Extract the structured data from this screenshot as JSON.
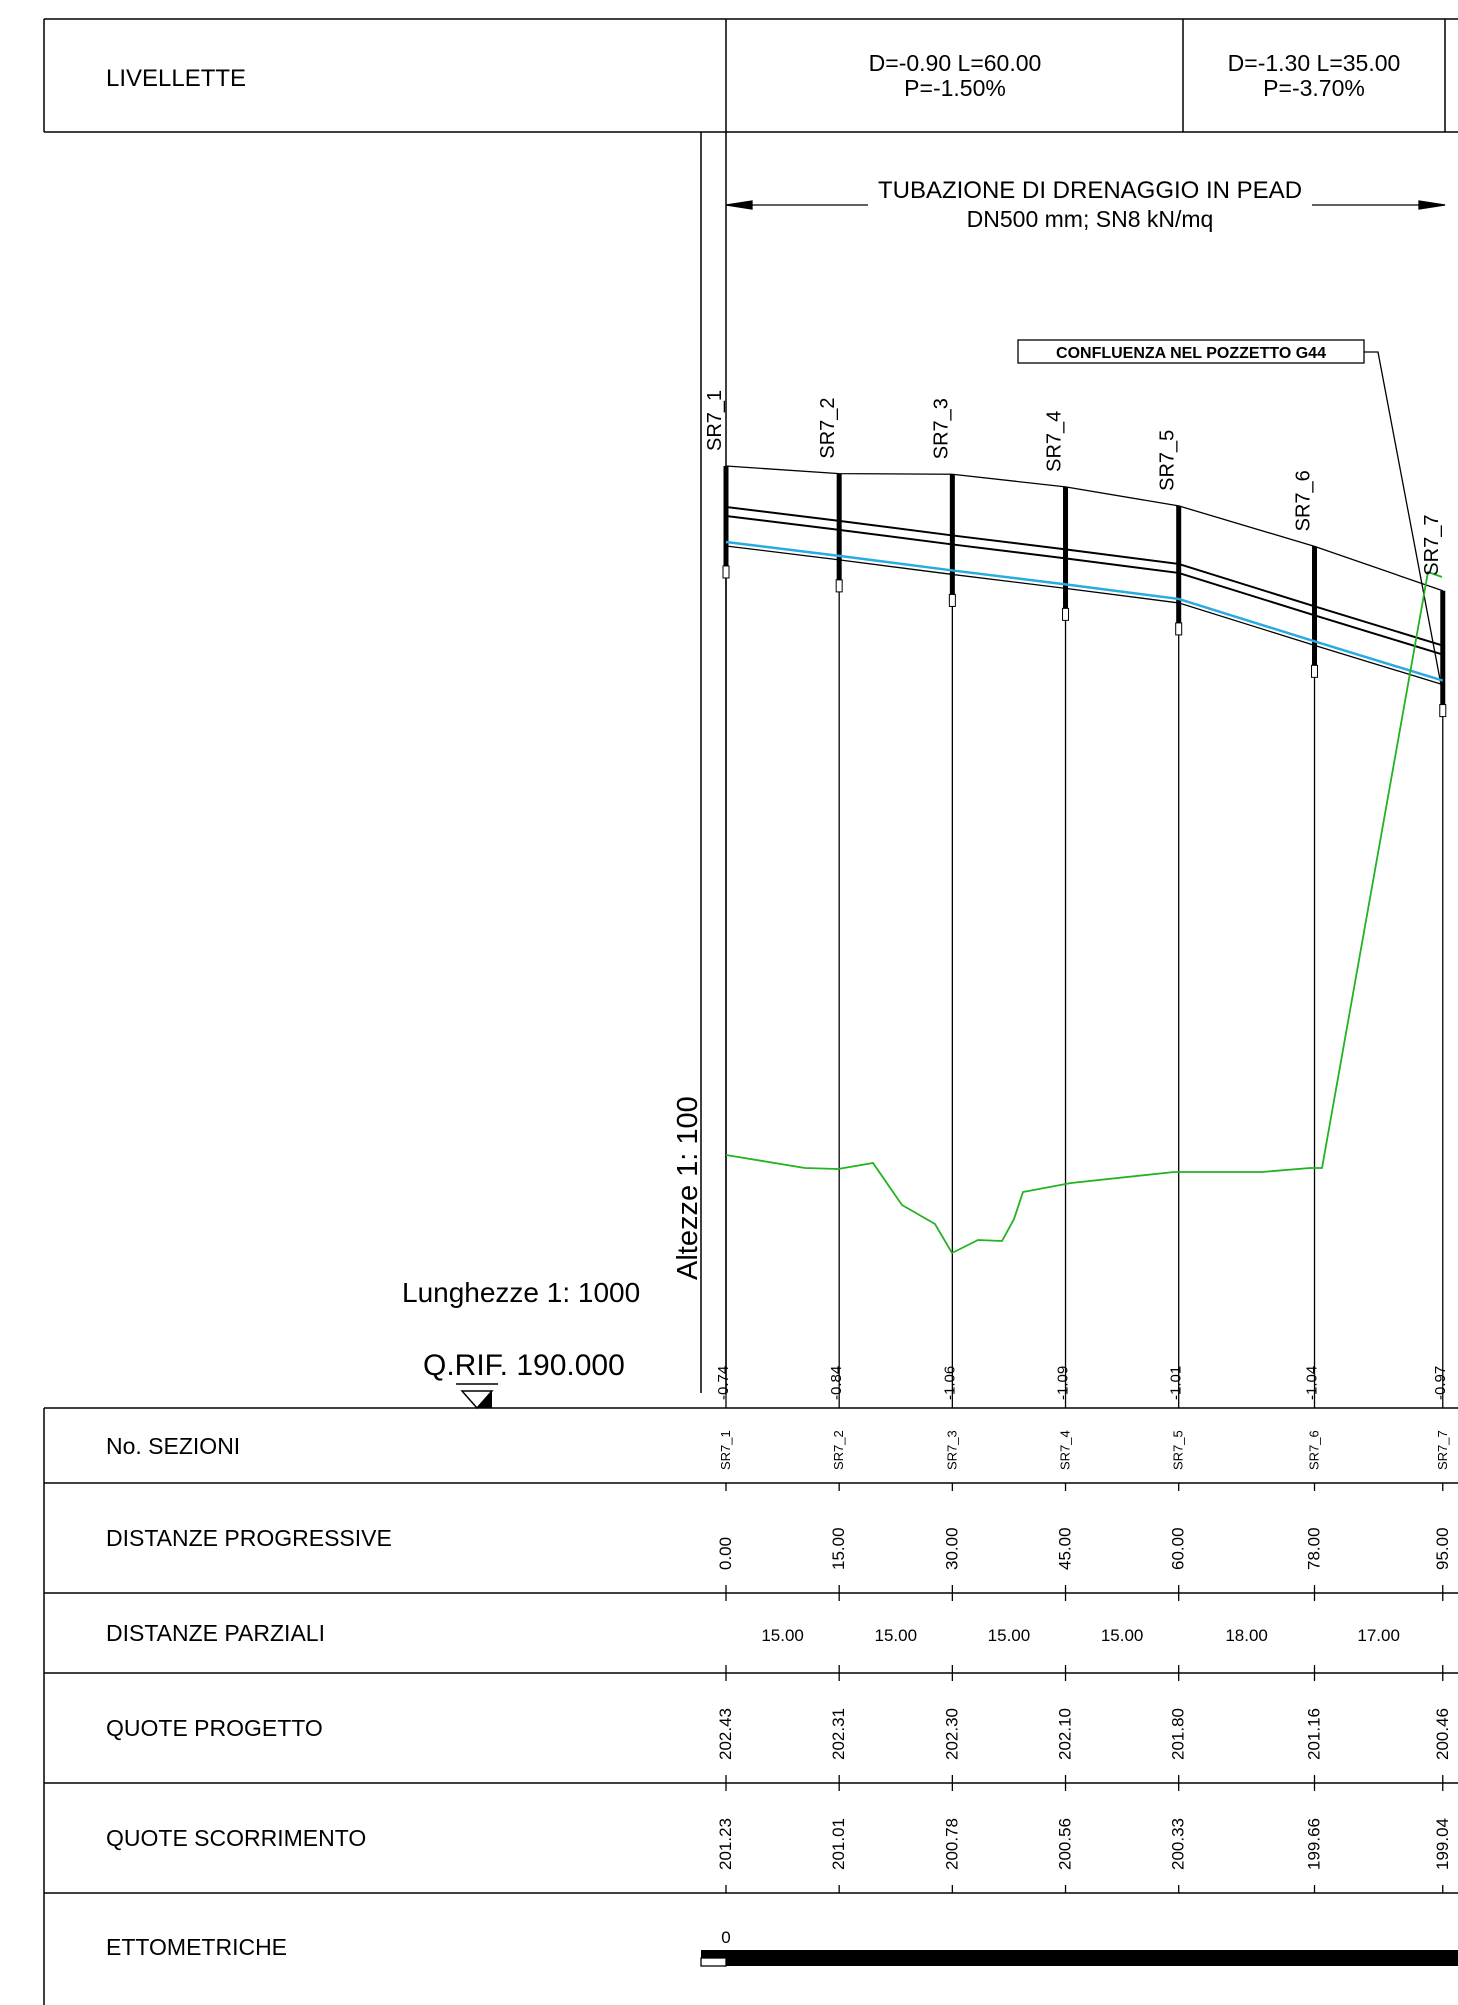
{
  "livellette": {
    "label": "LIVELLETTE",
    "segments": [
      {
        "line1": "D=-0.90 L=60.00",
        "line2": "P=-1.50%"
      },
      {
        "line1": "D=-1.30 L=35.00",
        "line2": "P=-3.70%"
      }
    ]
  },
  "profile": {
    "pipe_title_line1": "TUBAZIONE DI DRENAGGIO IN PEAD",
    "pipe_title_line2": "DN500 mm; SN8 kN/mq",
    "confluence_label": "CONFLUENZA NEL POZZETTO G44",
    "scale_heights": "Altezze 1: 100",
    "scale_lengths": "Lunghezze 1: 1000",
    "reference": "Q.RIF. 190.000",
    "colors": {
      "pipe": "#000000",
      "water": "#29abe2",
      "terrain": "#22b222"
    }
  },
  "table": {
    "row_labels": {
      "sections": "No. SEZIONI",
      "prog": "DISTANZE PROGRESSIVE",
      "partial": "DISTANZE PARZIALI",
      "project": "QUOTE PROGETTO",
      "flow": "QUOTE SCORRIMENTO",
      "ettometric": "ETTOMETRICHE"
    },
    "ettometric_start": "0"
  },
  "stations": [
    {
      "name": "SR7_1",
      "diff": "-0.74",
      "prog": "0.00",
      "quota_progetto": "202.43",
      "quota_scorrimento": "201.23"
    },
    {
      "name": "SR7_2",
      "diff": "-0.84",
      "prog": "15.00",
      "quota_progetto": "202.31",
      "quota_scorrimento": "201.01"
    },
    {
      "name": "SR7_3",
      "diff": "-1.06",
      "prog": "30.00",
      "quota_progetto": "202.30",
      "quota_scorrimento": "200.78"
    },
    {
      "name": "SR7_4",
      "diff": "-1.09",
      "prog": "45.00",
      "quota_progetto": "202.10",
      "quota_scorrimento": "200.56"
    },
    {
      "name": "SR7_5",
      "diff": "-1.01",
      "prog": "60.00",
      "quota_progetto": "201.80",
      "quota_scorrimento": "200.33"
    },
    {
      "name": "SR7_6",
      "diff": "-1.04",
      "prog": "78.00",
      "quota_progetto": "201.16",
      "quota_scorrimento": "199.66"
    },
    {
      "name": "SR7_7",
      "diff": "-0.97",
      "prog": "95.00",
      "quota_progetto": "200.46",
      "quota_scorrimento": "199.04"
    }
  ],
  "partials": [
    "15.00",
    "15.00",
    "15.00",
    "15.00",
    "18.00",
    "17.00"
  ]
}
